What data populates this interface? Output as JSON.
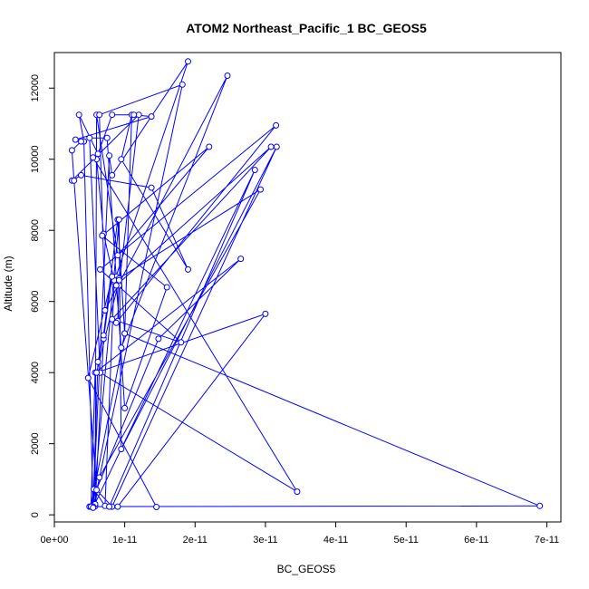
{
  "chart_data": {
    "type": "line",
    "title": "ATOM2 Northeast_Pacific_1 BC_GEOS5",
    "xlabel": "BC_GEOS5",
    "ylabel": "Altitude (m)",
    "xlim": [
      0,
      7.2e-11
    ],
    "ylim": [
      -200,
      13000
    ],
    "x_ticks": [
      0,
      1e-11,
      2e-11,
      3e-11,
      4e-11,
      5e-11,
      6e-11,
      7e-11
    ],
    "x_tick_labels": [
      "0e+00",
      "1e-11",
      "2e-11",
      "3e-11",
      "4e-11",
      "5e-11",
      "6e-11",
      "7e-11"
    ],
    "y_ticks": [
      0,
      2000,
      4000,
      6000,
      8000,
      10000,
      12000
    ],
    "y_tick_labels": [
      "0",
      "2000",
      "4000",
      "6000",
      "8000",
      "10000",
      "12000"
    ],
    "grid": false,
    "line_color": "#0000ff",
    "marker": "open-circle",
    "series": [
      {
        "x": [
          1.45e-11,
          4.8e-12,
          8.2e-12,
          7e-12,
          5.8e-12,
          5.2e-12,
          5.6e-12,
          7.2e-12,
          8.5e-12,
          1.9e-11,
          8.2e-12,
          7.8e-12,
          5.5e-12,
          6.2e-12,
          7e-12,
          9e-12,
          1e-11,
          1.1e-11,
          9.5e-12,
          1.9e-11,
          1.38e-11,
          3.8e-12,
          2.5e-12,
          1.2e-11,
          9.2e-12,
          8.8e-12,
          8.5e-12,
          7e-12,
          6e-12,
          5.5e-12,
          3.45e-11,
          6.5e-12,
          5e-12,
          7.5e-12,
          1e-11,
          1.6e-11,
          6.8e-12,
          2.2e-11,
          9e-12,
          6e-12,
          5.8e-12,
          6.4e-12,
          2.93e-11,
          9.2e-12,
          9e-12,
          1.8e-11,
          6.5e-12,
          3.15e-11,
          8.8e-12,
          8.2e-12,
          3.08e-11,
          8.8e-12,
          9.5e-12,
          2.46e-11,
          7.2e-12,
          6.4e-12,
          1.82e-11,
          5.5e-12,
          4.2e-12,
          3.5e-12,
          6.2e-12,
          8.2e-12,
          1.13e-11,
          1.38e-11,
          3e-12,
          3.8e-12,
          2.5e-12,
          2.8e-12,
          6e-12,
          8.2e-12,
          3.16e-11,
          9.5e-12,
          9.2e-12,
          5.5e-12,
          5e-12,
          1.48e-11,
          2.65e-11,
          5.8e-12,
          5.2e-12,
          1e-11,
          6.9e-11,
          5.2e-12,
          5.5e-12,
          2.85e-11,
          7.8e-12,
          9e-12,
          3e-11,
          6e-12,
          9.2e-12,
          8.2e-12
        ],
        "y": [
          220,
          3850,
          6700,
          4950,
          240,
          230,
          720,
          250,
          6550,
          12750,
          9550,
          10100,
          220,
          4300,
          5050,
          8300,
          5100,
          11250,
          10000,
          6900,
          9200,
          9550,
          9400,
          11250,
          6450,
          6700,
          6600,
          7900,
          10000,
          10050,
          650,
          4000,
          10600,
          10600,
          3000,
          6400,
          7850,
          10350,
          7300,
          11250,
          300,
          1050,
          9150,
          6650,
          5450,
          4850,
          6900,
          10950,
          5400,
          5500,
          10350,
          6450,
          4700,
          12350,
          5750,
          11250,
          12100,
          200,
          10500,
          11250,
          10150,
          11250,
          11250,
          11200,
          10550,
          10500,
          10250,
          9400,
          700,
          230,
          10350,
          1850,
          8300,
          230,
          230,
          4950,
          7200,
          4000,
          230,
          5100,
          250,
          230,
          200,
          9700,
          230,
          230,
          5650,
          4000,
          6600,
          6700
        ]
      }
    ]
  }
}
